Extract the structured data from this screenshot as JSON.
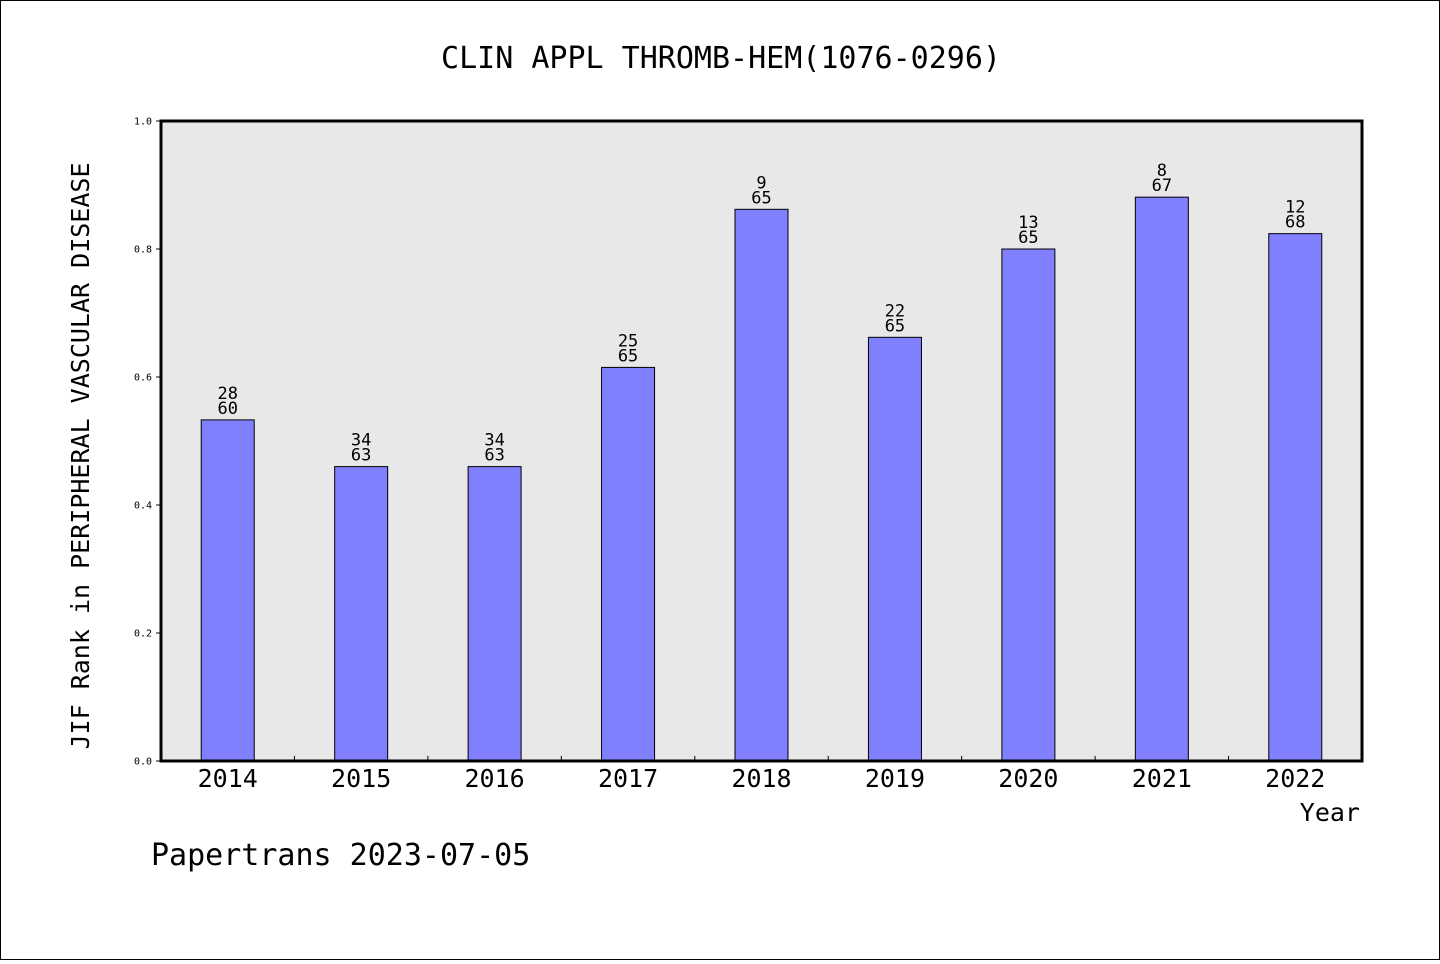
{
  "chart_data": {
    "type": "bar",
    "title": "CLIN APPL THROMB-HEM(1076-0296)",
    "xlabel": "Year",
    "ylabel": "JIF Rank in PERIPHERAL VASCULAR DISEASE",
    "ylim": [
      0.0,
      1.0
    ],
    "yticks": [
      "0.0",
      "0.2",
      "0.4",
      "0.6",
      "0.8",
      "1.0"
    ],
    "grid": false,
    "colors": {
      "bar": "#8080ff",
      "plot_bg": "#e8e8e8"
    },
    "categories": [
      "2014",
      "2015",
      "2016",
      "2017",
      "2018",
      "2019",
      "2020",
      "2021",
      "2022"
    ],
    "values": [
      0.533,
      0.46,
      0.46,
      0.615,
      0.862,
      0.662,
      0.8,
      0.881,
      0.824
    ],
    "rank": [
      "28",
      "34",
      "34",
      "25",
      "9",
      "22",
      "13",
      "8",
      "12"
    ],
    "total": [
      "60",
      "63",
      "63",
      "65",
      "65",
      "65",
      "65",
      "67",
      "68"
    ]
  },
  "footer": "Papertrans 2023-07-05"
}
